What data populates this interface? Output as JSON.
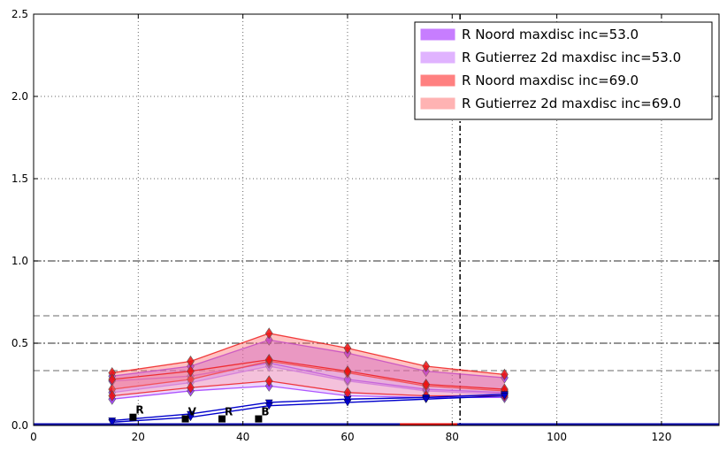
{
  "chart_data": {
    "type": "line",
    "title": "",
    "xlabel": "",
    "ylabel": "",
    "xlim": [
      0,
      131
    ],
    "ylim": [
      0,
      2.5
    ],
    "xticks": [
      0,
      20,
      40,
      60,
      80,
      100,
      120
    ],
    "yticks": [
      0.0,
      0.5,
      1.0,
      1.5,
      2.0,
      2.5
    ],
    "ytick_labels": [
      "0.0",
      "0.5",
      "1.0",
      "1.5",
      "2.0",
      "2.5"
    ],
    "grid": true,
    "legend_position": "top-right",
    "colors": {
      "purple": "#9b30ff",
      "purple_fill": "#c77dff",
      "purple_light_fill": "#e0b3ff",
      "red": "#ee1111",
      "red_fill": "#ff8080",
      "red_light_fill": "#ffb3b3",
      "blue": "#0000cc"
    },
    "legend": [
      {
        "label": "R Noord maxdisc inc=53.0",
        "color": "#c77dff"
      },
      {
        "label": "R Gutierrez 2d maxdisc inc=53.0",
        "color": "#e0b3ff"
      },
      {
        "label": "R Noord maxdisc inc=69.0",
        "color": "#ff8080"
      },
      {
        "label": "R Gutierrez 2d maxdisc inc=69.0",
        "color": "#ffb3b3"
      }
    ],
    "bands": [
      {
        "color": "#9b30ff",
        "fill": "#b266ff",
        "opacity": 0.45,
        "x": [
          15,
          30,
          45,
          60,
          75,
          90
        ],
        "upper": [
          0.3,
          0.36,
          0.52,
          0.44,
          0.33,
          0.29
        ],
        "lower": [
          0.2,
          0.26,
          0.36,
          0.27,
          0.21,
          0.19
        ]
      },
      {
        "color": "#9b30ff",
        "fill": "#d9a6ff",
        "opacity": 0.45,
        "x": [
          15,
          30,
          45,
          60,
          75,
          90
        ],
        "upper": [
          0.27,
          0.3,
          0.38,
          0.28,
          0.22,
          0.2
        ],
        "lower": [
          0.16,
          0.21,
          0.24,
          0.18,
          0.17,
          0.17
        ]
      },
      {
        "color": "#ee1111",
        "fill": "#ff6666",
        "opacity": 0.4,
        "x": [
          15,
          30,
          45,
          60,
          75,
          90
        ],
        "upper": [
          0.32,
          0.39,
          0.56,
          0.47,
          0.36,
          0.31
        ],
        "lower": [
          0.22,
          0.28,
          0.39,
          0.32,
          0.24,
          0.21
        ]
      },
      {
        "color": "#ee1111",
        "fill": "#ff9999",
        "opacity": 0.35,
        "x": [
          15,
          30,
          45,
          60,
          75,
          90
        ],
        "upper": [
          0.28,
          0.33,
          0.4,
          0.33,
          0.25,
          0.22
        ],
        "lower": [
          0.18,
          0.23,
          0.27,
          0.2,
          0.18,
          0.18
        ]
      }
    ],
    "blue_lines": [
      {
        "x": [
          15,
          30,
          45,
          60,
          75,
          90
        ],
        "y": [
          0.03,
          0.07,
          0.14,
          0.16,
          0.17,
          0.19
        ]
      },
      {
        "x": [
          15,
          30,
          45,
          60,
          75,
          90
        ],
        "y": [
          0.02,
          0.05,
          0.12,
          0.14,
          0.16,
          0.18
        ]
      }
    ],
    "squares": [
      {
        "x": 19.0,
        "y": 0.05,
        "label": "R"
      },
      {
        "x": 29.0,
        "y": 0.04,
        "label": "V"
      },
      {
        "x": 36.0,
        "y": 0.04,
        "label": "R"
      },
      {
        "x": 43.0,
        "y": 0.04,
        "label": "B"
      }
    ],
    "hlines": [
      {
        "y": 1.0,
        "color": "#555555",
        "dash": "8,3,2,3"
      },
      {
        "y": 0.6667,
        "color": "#888888",
        "dash": "7,4"
      },
      {
        "y": 0.5,
        "color": "#555555",
        "dash": "8,3,2,3"
      },
      {
        "y": 0.3333,
        "color": "#888888",
        "dash": "7,4"
      }
    ],
    "vline": {
      "x": 81.5,
      "color": "#000000",
      "dash": "6,3,2,3"
    },
    "baseline": [
      {
        "x0": 0,
        "x1": 131,
        "y": 0.0,
        "color": "#0000aa"
      },
      {
        "x0": 70,
        "x1": 81,
        "y": 0.0,
        "color": "#dd0000"
      }
    ]
  }
}
